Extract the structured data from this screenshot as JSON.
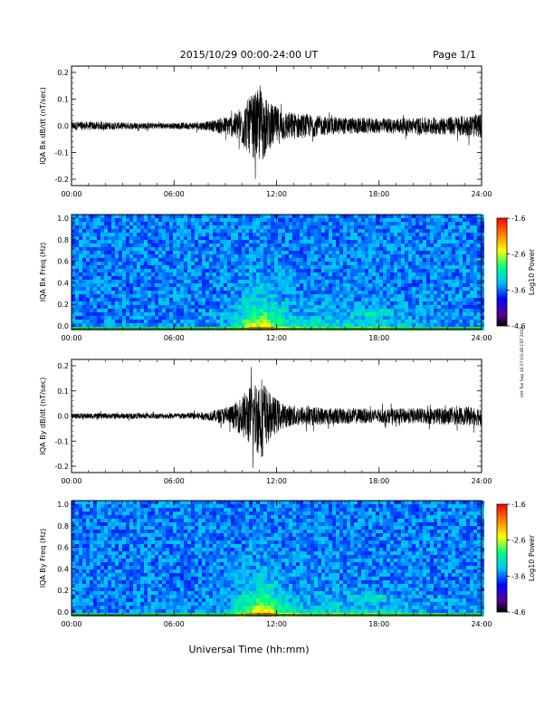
{
  "header": {
    "date_range": "2015/10/29  00:00-24:00 UT",
    "page": "Page 1/1"
  },
  "footer": {
    "xlabel": "Universal Time (hh:mm)"
  },
  "side_note": "mit Tue Sep 10 07:03:48 CST 2019",
  "colors": {
    "trace": "#000000",
    "spectrogram_scale": [
      "#000000",
      "#5a0090",
      "#0000ff",
      "#00c0ff",
      "#00ff80",
      "#ffff00",
      "#ff8000",
      "#ff0000"
    ]
  },
  "chart_data": [
    {
      "type": "line",
      "ylabel": "IQA Bx dB/dt (nT/sec)",
      "x_ticks": [
        "00:00",
        "06:00",
        "12:00",
        "18:00",
        "24:00"
      ],
      "y_ticks": [
        "0.2",
        "0.1",
        "0.0",
        "-0.1",
        "-0.2"
      ],
      "xlim": [
        0,
        24
      ],
      "ylim": [
        -0.2,
        0.2
      ],
      "envelope": [
        {
          "t": 0,
          "amp": 0.015
        },
        {
          "t": 3,
          "amp": 0.012
        },
        {
          "t": 6,
          "amp": 0.01
        },
        {
          "t": 8,
          "amp": 0.015
        },
        {
          "t": 9.5,
          "amp": 0.04
        },
        {
          "t": 10.5,
          "amp": 0.1
        },
        {
          "t": 11.1,
          "amp": 0.13
        },
        {
          "t": 11.5,
          "amp": 0.08
        },
        {
          "t": 12.5,
          "amp": 0.05
        },
        {
          "t": 15,
          "amp": 0.03
        },
        {
          "t": 18,
          "amp": 0.025
        },
        {
          "t": 22,
          "amp": 0.03
        },
        {
          "t": 24,
          "amp": 0.04
        }
      ]
    },
    {
      "type": "heatmap",
      "ylabel": "IQA Bx Freq (Hz)",
      "x_ticks": [
        "00:00",
        "06:00",
        "12:00",
        "18:00",
        "24:00"
      ],
      "y_ticks": [
        "1.0",
        "0.8",
        "0.6",
        "0.4",
        "0.2",
        "0.0"
      ],
      "xlim": [
        0,
        24
      ],
      "ylim": [
        0,
        1
      ],
      "colorbar": {
        "label": "Log10 Power",
        "ticks": [
          "-1.6",
          "-2.6",
          "-3.6",
          "-4.6"
        ],
        "range": [
          -4.6,
          -1.6
        ]
      }
    },
    {
      "type": "line",
      "ylabel": "IQA By dB/dt (nT/sec)",
      "x_ticks": [
        "00:00",
        "06:00",
        "12:00",
        "18:00",
        "24:00"
      ],
      "y_ticks": [
        "0.2",
        "0.1",
        "0.0",
        "-0.1",
        "-0.2"
      ],
      "xlim": [
        0,
        24
      ],
      "ylim": [
        -0.2,
        0.2
      ],
      "envelope": [
        {
          "t": 0,
          "amp": 0.01
        },
        {
          "t": 3,
          "amp": 0.01
        },
        {
          "t": 6,
          "amp": 0.01
        },
        {
          "t": 8,
          "amp": 0.015
        },
        {
          "t": 9.5,
          "amp": 0.04
        },
        {
          "t": 10.5,
          "amp": 0.11
        },
        {
          "t": 11.1,
          "amp": 0.15
        },
        {
          "t": 11.6,
          "amp": 0.08
        },
        {
          "t": 12.5,
          "amp": 0.04
        },
        {
          "t": 15,
          "amp": 0.03
        },
        {
          "t": 18,
          "amp": 0.025
        },
        {
          "t": 22,
          "amp": 0.03
        },
        {
          "t": 24,
          "amp": 0.035
        }
      ]
    },
    {
      "type": "heatmap",
      "ylabel": "IQA By Freq (Hz)",
      "x_ticks": [
        "00:00",
        "06:00",
        "12:00",
        "18:00",
        "24:00"
      ],
      "y_ticks": [
        "1.0",
        "0.8",
        "0.6",
        "0.4",
        "0.2",
        "0.0"
      ],
      "xlim": [
        0,
        24
      ],
      "ylim": [
        0,
        1
      ],
      "colorbar": {
        "label": "Log10 Power",
        "ticks": [
          "-1.6",
          "-2.6",
          "-3.6",
          "-4.6"
        ],
        "range": [
          -4.6,
          -1.6
        ]
      }
    }
  ]
}
